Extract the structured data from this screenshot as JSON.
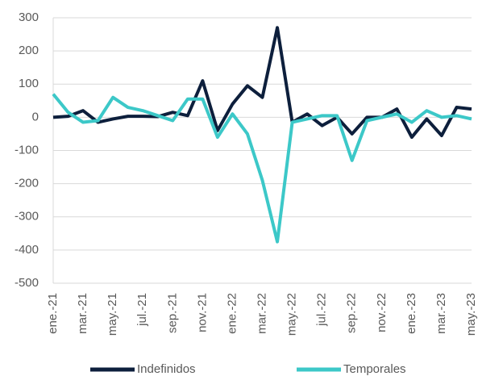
{
  "chart_data": {
    "type": "line",
    "categories": [
      "ene.-21",
      null,
      "mar.-21",
      null,
      "may.-21",
      null,
      "jul.-21",
      null,
      "sep.-21",
      null,
      "nov.-21",
      null,
      "ene.-22",
      null,
      "mar.-22",
      null,
      "may.-22",
      null,
      "jul.-22",
      null,
      "sep.-22",
      null,
      "nov.-22",
      null,
      "ene.-23",
      null,
      "mar.-23",
      null,
      "may.-23"
    ],
    "series": [
      {
        "name": "Indefinidos",
        "color": "#0d1f3c",
        "values": [
          0,
          3,
          20,
          -15,
          -5,
          3,
          3,
          2,
          15,
          5,
          110,
          -40,
          40,
          95,
          60,
          270,
          -15,
          10,
          -25,
          0,
          -50,
          0,
          0,
          25,
          -60,
          -5,
          -55,
          30,
          25
        ]
      },
      {
        "name": "Temporales",
        "color": "#3cc8c8",
        "values": [
          70,
          15,
          -15,
          -10,
          60,
          30,
          20,
          5,
          -10,
          55,
          55,
          -60,
          10,
          -50,
          -190,
          -375,
          -15,
          -5,
          5,
          5,
          -130,
          -10,
          0,
          10,
          -15,
          20,
          0,
          5,
          -5
        ]
      }
    ],
    "ylim": [
      -500,
      300
    ],
    "yticks": [
      -500,
      -400,
      -300,
      -200,
      -100,
      0,
      100,
      200,
      300
    ],
    "grid": true
  }
}
